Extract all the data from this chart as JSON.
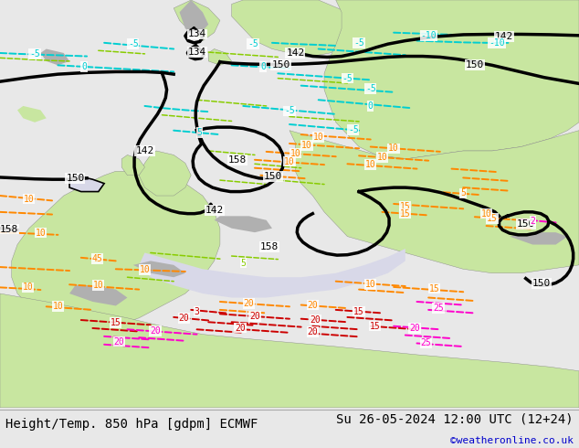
{
  "title_left": "Height/Temp. 850 hPa [gdpm] ECMWF",
  "title_right": "Su 26-05-2024 12:00 UTC (12+24)",
  "credit": "©weatheronline.co.uk",
  "footer_bg": "#e8e8e8",
  "title_font_size": 10,
  "credit_color": "#0000cc",
  "fig_width": 6.34,
  "fig_height": 4.9,
  "dpi": 100,
  "map_sea_color": "#d8d8e8",
  "map_land_green": "#c8e6a0",
  "map_land_gray": "#b0b0b0",
  "map_land_blue": "#a8c8e0"
}
